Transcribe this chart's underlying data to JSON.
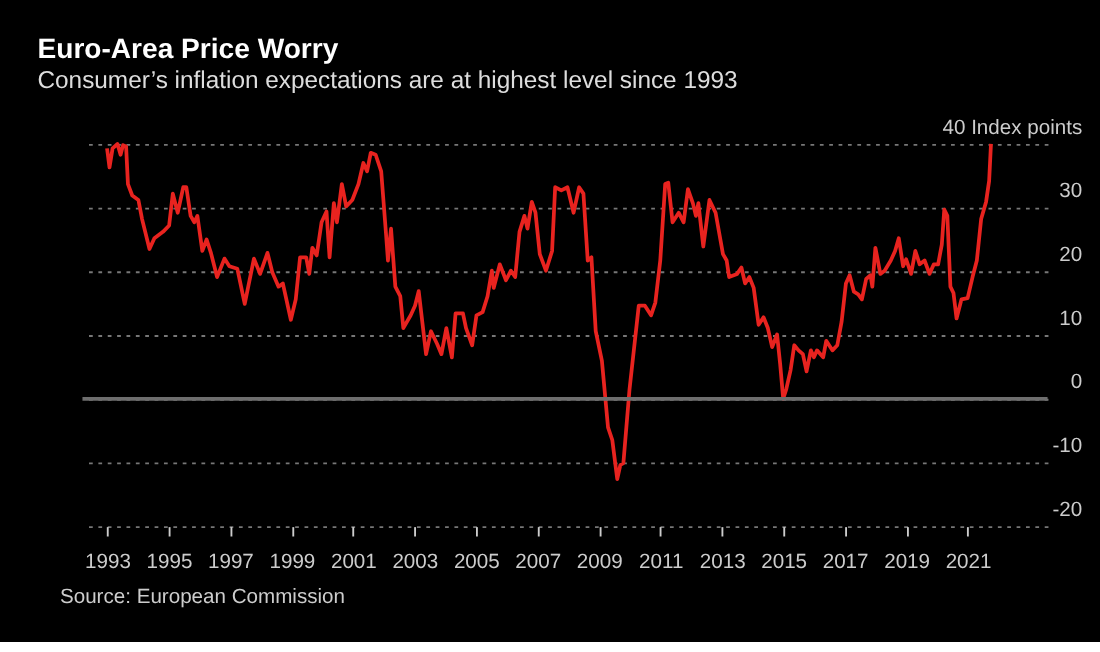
{
  "chart_data": {
    "type": "line",
    "title": "Euro-Area Price Worry",
    "subtitle": "Consumer’s inflation expectations are at highest level since 1993",
    "annotations": [
      "Source: European Commission"
    ],
    "series": [
      {
        "color": "#e8231f",
        "x": [
          1993.0,
          1993.08,
          1993.18,
          1993.34,
          1993.44,
          1993.52,
          1993.62,
          1993.68,
          1993.82,
          1994.02,
          1994.14,
          1994.38,
          1994.54,
          1994.82,
          1995.02,
          1995.14,
          1995.3,
          1995.48,
          1995.58,
          1995.72,
          1995.84,
          1995.94,
          1996.1,
          1996.24,
          1996.38,
          1996.58,
          1996.82,
          1996.98,
          1997.24,
          1997.48,
          1997.78,
          1997.98,
          1998.22,
          1998.38,
          1998.58,
          1998.72,
          1998.98,
          1999.14,
          1999.28,
          1999.48,
          1999.58,
          1999.68,
          1999.82,
          1999.98,
          2000.14,
          2000.24,
          2000.38,
          2000.48,
          2000.64,
          2000.78,
          2000.98,
          2001.18,
          2001.34,
          2001.46,
          2001.58,
          2001.74,
          2001.92,
          2002.08,
          2002.14,
          2002.24,
          2002.38,
          2002.54,
          2002.64,
          2002.88,
          2003.02,
          2003.14,
          2003.38,
          2003.54,
          2003.74,
          2003.88,
          2004.04,
          2004.22,
          2004.34,
          2004.58,
          2004.68,
          2004.88,
          2005.02,
          2005.22,
          2005.38,
          2005.52,
          2005.58,
          2005.78,
          2005.98,
          2006.14,
          2006.28,
          2006.42,
          2006.58,
          2006.68,
          2006.82,
          2006.94,
          2007.08,
          2007.28,
          2007.48,
          2007.58,
          2007.78,
          2007.98,
          2008.18,
          2008.36,
          2008.5,
          2008.64,
          2008.76,
          2008.9,
          2009.1,
          2009.3,
          2009.44,
          2009.6,
          2009.7,
          2009.8,
          2010.0,
          2010.3,
          2010.5,
          2010.7,
          2010.84,
          2011.0,
          2011.16,
          2011.26,
          2011.4,
          2011.6,
          2011.76,
          2011.9,
          2012.06,
          2012.16,
          2012.24,
          2012.4,
          2012.6,
          2012.8,
          2013.04,
          2013.16,
          2013.24,
          2013.5,
          2013.64,
          2013.76,
          2013.9,
          2014.04,
          2014.2,
          2014.36,
          2014.5,
          2014.64,
          2014.8,
          2014.9,
          2015.0,
          2015.1,
          2015.24,
          2015.36,
          2015.5,
          2015.64,
          2015.76,
          2015.9,
          2016.0,
          2016.1,
          2016.3,
          2016.4,
          2016.6,
          2016.76,
          2016.9,
          2017.04,
          2017.16,
          2017.3,
          2017.44,
          2017.56,
          2017.7,
          2017.84,
          2017.9,
          2018.0,
          2018.16,
          2018.3,
          2018.5,
          2018.64,
          2018.76,
          2018.9,
          2019.0,
          2019.16,
          2019.3,
          2019.44,
          2019.6,
          2019.76,
          2019.9,
          2020.04,
          2020.16,
          2020.24,
          2020.34,
          2020.44,
          2020.54,
          2020.64,
          2020.8,
          2021.0,
          2021.16,
          2021.3,
          2021.44,
          2021.6,
          2021.7,
          2021.76
        ],
        "values": [
          39.3,
          36.3,
          39.3,
          40,
          38.3,
          39.8,
          39.6,
          33.7,
          31.9,
          31.2,
          28.2,
          23.5,
          25.2,
          26.2,
          27.2,
          32.2,
          29.2,
          33.2,
          33.2,
          28.7,
          27.7,
          28.7,
          23.2,
          25,
          22.9,
          19.1,
          22,
          20.8,
          20.4,
          14.9,
          22,
          19.6,
          22.9,
          19.8,
          17.6,
          18.1,
          12.4,
          15.6,
          22.2,
          22.2,
          19.6,
          23.7,
          22.5,
          27.7,
          29.4,
          22.2,
          30.7,
          27.7,
          33.7,
          30.2,
          31.2,
          33.7,
          37,
          35.7,
          38.6,
          38.3,
          35.7,
          25.7,
          21.7,
          26.7,
          17.6,
          16.1,
          11.1,
          13.1,
          14.6,
          16.9,
          7,
          10.6,
          8.6,
          7,
          11.1,
          6.5,
          13.4,
          13.4,
          11.1,
          8.4,
          13.1,
          13.6,
          16.1,
          20.1,
          17.4,
          21.1,
          18.6,
          20.1,
          19.1,
          26.2,
          28.7,
          26.7,
          30.9,
          29.2,
          22.7,
          20.1,
          23.2,
          33.2,
          32.7,
          33.2,
          29.2,
          33.2,
          32.2,
          21.7,
          22.2,
          10.6,
          6,
          -4.5,
          -6.5,
          -12.6,
          -10.4,
          -10.1,
          1.5,
          14.6,
          14.6,
          13.1,
          15.1,
          21.7,
          33.7,
          33.9,
          27.7,
          29.2,
          27.7,
          32.9,
          30.7,
          28.7,
          30.7,
          23.9,
          31.2,
          29.2,
          22.7,
          21.7,
          19.1,
          19.6,
          20.6,
          18.1,
          19.1,
          17.4,
          11.6,
          12.8,
          11.1,
          8.1,
          10.1,
          5.5,
          0,
          1.5,
          4.5,
          8.4,
          7.6,
          7,
          4.3,
          7.6,
          6.5,
          7.6,
          6.5,
          9.1,
          7.6,
          8.4,
          12.1,
          18.1,
          19.4,
          16.8,
          16.4,
          15.6,
          18.8,
          19.4,
          17.6,
          23.7,
          19.6,
          20.1,
          21.7,
          23.2,
          25.2,
          20.8,
          21.9,
          19.6,
          23.2,
          21.1,
          21.7,
          19.6,
          21.1,
          21.1,
          24.2,
          29.7,
          28.7,
          17.6,
          16.6,
          12.6,
          15.6,
          15.8,
          19.1,
          21.7,
          28.2,
          30.9,
          34.2,
          40
        ]
      }
    ],
    "xlim": [
      1992.2,
      2023.6
    ],
    "xticks": [
      1993,
      1995,
      1997,
      1999,
      2001,
      2003,
      2005,
      2007,
      2009,
      2011,
      2013,
      2015,
      2017,
      2019,
      2021
    ],
    "ylim": [
      -20,
      40
    ],
    "yticks": [
      {
        "value": 40,
        "label": "40 Index points"
      },
      30,
      20,
      10,
      0,
      -10,
      -20
    ],
    "ref_lines": [
      {
        "axis": "y",
        "value": 0,
        "color": "#6e6e6e"
      }
    ],
    "grid": "y",
    "line_style": "solid",
    "marker": "none"
  }
}
